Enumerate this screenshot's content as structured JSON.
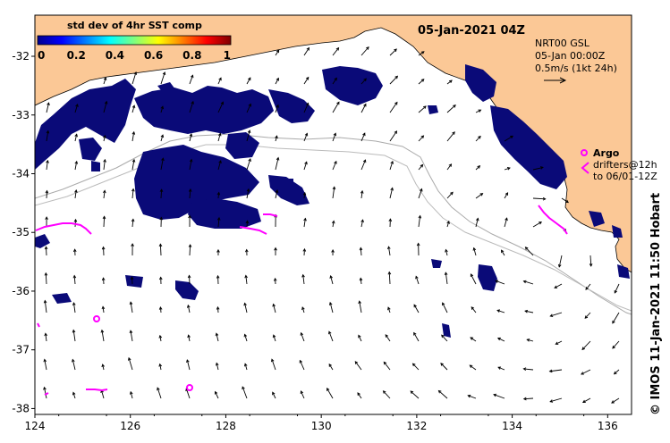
{
  "title": "05-Jan-2021 04Z",
  "colorbar": {
    "title": "std dev of 4hr SST comp",
    "tick_labels": [
      "0",
      "0.2",
      "0.4",
      "0.6",
      "0.8",
      "1"
    ],
    "range": [
      0,
      1
    ],
    "colormap": "jet"
  },
  "currents_legend": {
    "line1": "NRT00 GSL",
    "line2": "05-Jan 00:00Z",
    "line3": "0.5m/s (1kt 24h)"
  },
  "argo_legend": {
    "argo_label": "Argo",
    "drifters_line1": "drifters@12h",
    "drifters_line2": "to 06/01-12Z"
  },
  "credit": "© IMOS 11-Jan-2021 11:50 Hobart",
  "axes": {
    "x_ticks": [
      "124",
      "126",
      "128",
      "130",
      "132",
      "134",
      "136"
    ],
    "y_ticks": [
      "-32",
      "-33",
      "-34",
      "-35",
      "-36",
      "-37",
      "-38"
    ],
    "x_range": [
      124,
      136.5
    ],
    "y_range": [
      -38.1,
      -31.3
    ]
  },
  "colors": {
    "land": "#fbc896",
    "sst_patch": "#0a0a78",
    "argo": "#ff00ff",
    "isobath": "#aaaaaa"
  }
}
